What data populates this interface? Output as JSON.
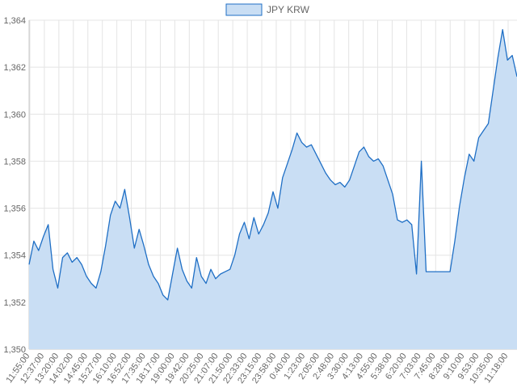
{
  "chart_data": {
    "type": "area",
    "title": "",
    "xlabel": "",
    "ylabel": "",
    "legend": {
      "position": "top",
      "entries": [
        "JPY KRW"
      ]
    },
    "ylim": [
      1350,
      1364
    ],
    "grid": true,
    "colors": {
      "line": "#1f6fc5",
      "fill": "#c9def4",
      "grid": "#e4e4e4",
      "axis": "#c8c8c8"
    },
    "y_ticks": [
      "1,350",
      "1,352",
      "1,354",
      "1,356",
      "1,358",
      "1,360",
      "1,362",
      "1,364"
    ],
    "x_ticks": [
      "11:55:00",
      "12:37:00",
      "13:20:00",
      "14:02:00",
      "14:45:00",
      "15:27:00",
      "16:10:00",
      "16:52:00",
      "17:35:00",
      "18:17:00",
      "19:00:00",
      "19:42:00",
      "20:25:00",
      "21:07:00",
      "21:50:00",
      "22:33:00",
      "23:15:00",
      "23:58:00",
      "0:40:00",
      "1:23:00",
      "2:05:00",
      "2:48:00",
      "3:30:00",
      "4:13:00",
      "4:55:00",
      "5:38:00",
      "6:20:00",
      "7:03:00",
      "7:45:00",
      "8:28:00",
      "9:10:00",
      "9:53:00",
      "10:35:00",
      "11:18:00"
    ],
    "series": [
      {
        "name": "JPY KRW",
        "values": [
          1353.6,
          1354.6,
          1354.2,
          1354.8,
          1355.3,
          1353.4,
          1352.6,
          1353.9,
          1354.1,
          1353.7,
          1353.9,
          1353.6,
          1353.1,
          1352.8,
          1352.6,
          1353.3,
          1354.4,
          1355.7,
          1356.3,
          1356.0,
          1356.8,
          1355.6,
          1354.3,
          1355.1,
          1354.4,
          1353.6,
          1353.1,
          1352.8,
          1352.3,
          1352.1,
          1353.2,
          1354.3,
          1353.4,
          1352.9,
          1352.6,
          1353.9,
          1353.1,
          1352.8,
          1353.4,
          1353.0,
          1353.2,
          1353.3,
          1353.4,
          1354.0,
          1354.9,
          1355.4,
          1354.7,
          1355.6,
          1354.9,
          1355.3,
          1355.8,
          1356.7,
          1356.0,
          1357.3,
          1357.9,
          1358.5,
          1359.2,
          1358.8,
          1358.6,
          1358.7,
          1358.3,
          1357.9,
          1357.5,
          1357.2,
          1357.0,
          1357.1,
          1356.9,
          1357.2,
          1357.8,
          1358.4,
          1358.6,
          1358.2,
          1358.0,
          1358.1,
          1357.8,
          1357.2,
          1356.6,
          1355.5,
          1355.4,
          1355.5,
          1355.3,
          1353.2,
          1358.0,
          1353.3,
          1353.3,
          1353.3,
          1353.3,
          1353.3,
          1353.3,
          1354.6,
          1356.1,
          1357.3,
          1358.3,
          1358.0,
          1359.0,
          1359.3,
          1359.6,
          1361.0,
          1362.4,
          1363.6,
          1362.3,
          1362.5,
          1361.6
        ]
      }
    ]
  }
}
